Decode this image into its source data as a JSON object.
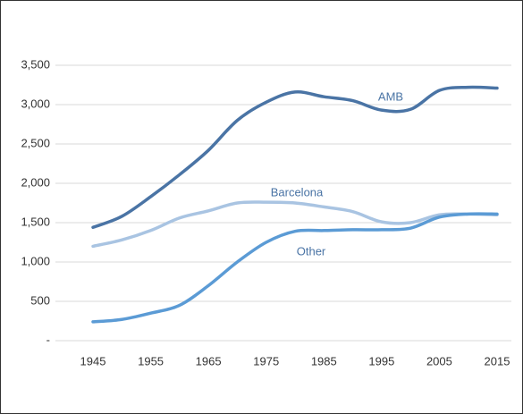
{
  "chart_data": {
    "type": "line",
    "x": [
      1945,
      1950,
      1955,
      1960,
      1965,
      1970,
      1975,
      1980,
      1985,
      1990,
      1995,
      2000,
      2005,
      2010,
      2015
    ],
    "xlim": [
      1945,
      2015
    ],
    "xticks": [
      1945,
      1955,
      1965,
      1975,
      1985,
      1995,
      2005,
      2015
    ],
    "ylim": [
      0,
      3500
    ],
    "yticks": [
      {
        "value": 0,
        "label": "-"
      },
      500,
      {
        "value": 1000,
        "label": "1,000"
      },
      {
        "value": 1500,
        "label": "1,500"
      },
      {
        "value": 2000,
        "label": "2,000"
      },
      {
        "value": 2500,
        "label": "2,500"
      },
      {
        "value": 3000,
        "label": "3,000"
      },
      {
        "value": 3500,
        "label": "3,500"
      }
    ],
    "grid": true,
    "series": [
      {
        "name": "AMB",
        "color": "#4a74a5",
        "values": [
          1440,
          1580,
          1830,
          2110,
          2420,
          2800,
          3030,
          3160,
          3100,
          3050,
          2930,
          2940,
          3180,
          3220,
          3210
        ]
      },
      {
        "name": "Barcelona",
        "color": "#a9c4e2",
        "values": [
          1200,
          1280,
          1400,
          1560,
          1650,
          1750,
          1760,
          1750,
          1700,
          1640,
          1510,
          1500,
          1600,
          1610,
          1600
        ]
      },
      {
        "name": "Other",
        "color": "#5b9bd5",
        "values": [
          240,
          270,
          350,
          450,
          700,
          1000,
          1250,
          1390,
          1400,
          1410,
          1410,
          1430,
          1570,
          1610,
          1610
        ]
      }
    ]
  }
}
